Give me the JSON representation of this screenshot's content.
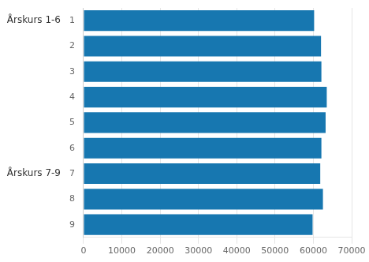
{
  "chart_data": {
    "type": "bar",
    "orientation": "horizontal",
    "categories": [
      "1",
      "2",
      "3",
      "4",
      "5",
      "6",
      "7",
      "8",
      "9"
    ],
    "values": [
      60200,
      62000,
      62100,
      63500,
      63200,
      62100,
      61800,
      62500,
      59800
    ],
    "color": "#1777b0",
    "xlim": [
      0,
      70000
    ],
    "xticks": [
      0,
      10000,
      20000,
      30000,
      40000,
      50000,
      60000,
      70000
    ],
    "grid": true,
    "annotations": [
      {
        "text": "Årskurs 1-6",
        "category": "1"
      },
      {
        "text": "Årskurs 7-9",
        "category": "7"
      }
    ]
  }
}
